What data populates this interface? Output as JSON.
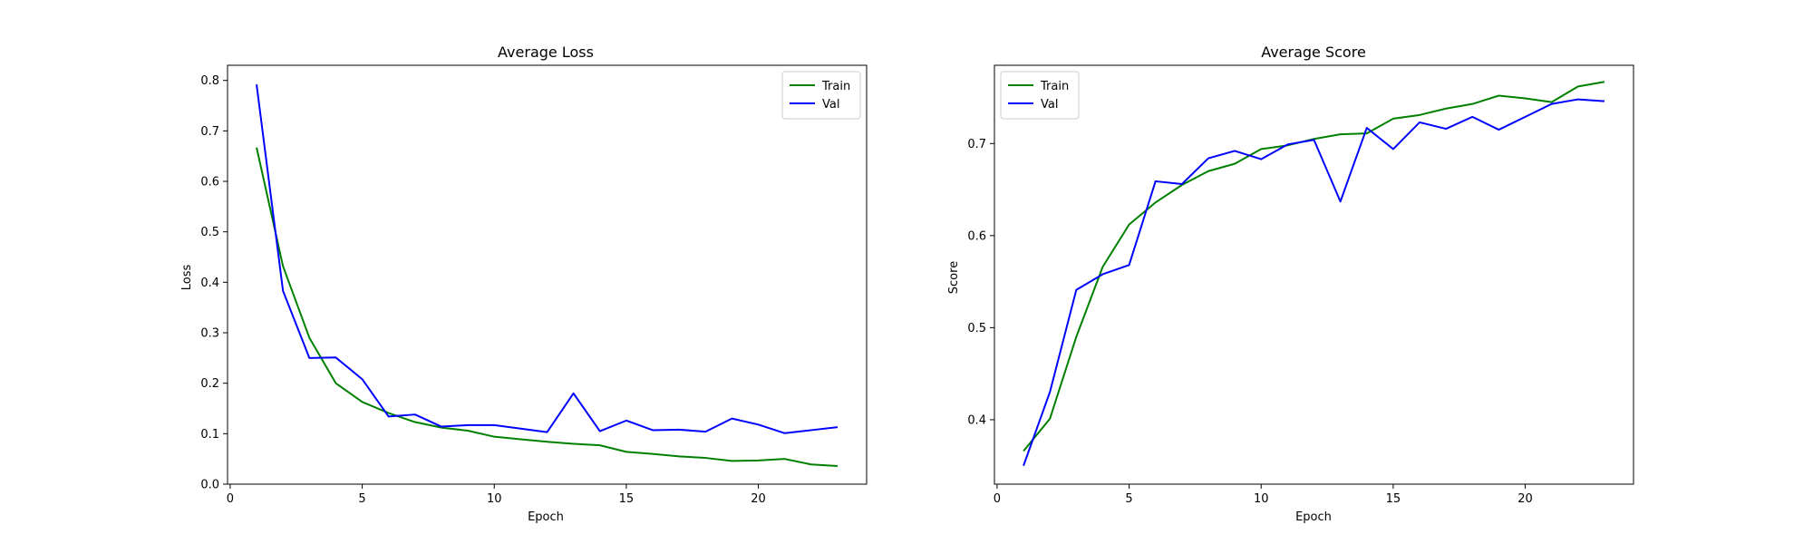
{
  "chart_data": [
    {
      "type": "line",
      "title": "Average Loss",
      "xlabel": "Epoch",
      "ylabel": "Loss",
      "xlim": [
        -0.1,
        24.1
      ],
      "ylim": [
        0.0,
        0.83
      ],
      "xticks": [
        0,
        5,
        10,
        15,
        20
      ],
      "yticks": [
        0.0,
        0.1,
        0.2,
        0.3,
        0.4,
        0.5,
        0.6,
        0.7,
        0.8
      ],
      "legend_position": "top-right",
      "grid": false,
      "x": [
        1,
        2,
        3,
        4,
        5,
        6,
        7,
        8,
        9,
        10,
        11,
        12,
        13,
        14,
        15,
        16,
        17,
        18,
        19,
        20,
        21,
        22,
        23
      ],
      "series": [
        {
          "name": "Train",
          "color": "#008000",
          "values": [
            0.667,
            0.432,
            0.29,
            0.2,
            0.163,
            0.141,
            0.123,
            0.112,
            0.106,
            0.094,
            0.089,
            0.084,
            0.08,
            0.077,
            0.064,
            0.06,
            0.055,
            0.052,
            0.046,
            0.047,
            0.05,
            0.039,
            0.036
          ]
        },
        {
          "name": "Val",
          "color": "#0000ff",
          "values": [
            0.792,
            0.383,
            0.25,
            0.251,
            0.208,
            0.134,
            0.138,
            0.114,
            0.117,
            0.117,
            0.11,
            0.103,
            0.18,
            0.105,
            0.126,
            0.107,
            0.108,
            0.104,
            0.13,
            0.118,
            0.101,
            0.107,
            0.113
          ]
        }
      ]
    },
    {
      "type": "line",
      "title": "Average Score",
      "xlabel": "Epoch",
      "ylabel": "Score",
      "xlim": [
        -0.1,
        24.1
      ],
      "ylim": [
        0.33,
        0.785
      ],
      "xticks": [
        0,
        5,
        10,
        15,
        20
      ],
      "yticks": [
        0.4,
        0.5,
        0.6,
        0.7
      ],
      "legend_position": "top-left",
      "grid": false,
      "x": [
        1,
        2,
        3,
        4,
        5,
        6,
        7,
        8,
        9,
        10,
        11,
        12,
        13,
        14,
        15,
        16,
        17,
        18,
        19,
        20,
        21,
        22,
        23
      ],
      "series": [
        {
          "name": "Train",
          "color": "#008000",
          "values": [
            0.366,
            0.401,
            0.49,
            0.566,
            0.612,
            0.636,
            0.655,
            0.67,
            0.678,
            0.694,
            0.698,
            0.705,
            0.71,
            0.711,
            0.727,
            0.731,
            0.738,
            0.743,
            0.752,
            0.749,
            0.745,
            0.762,
            0.767
          ]
        },
        {
          "name": "Val",
          "color": "#0000ff",
          "values": [
            0.35,
            0.43,
            0.541,
            0.558,
            0.568,
            0.659,
            0.656,
            0.684,
            0.692,
            0.683,
            0.699,
            0.704,
            0.637,
            0.717,
            0.694,
            0.723,
            0.716,
            0.729,
            0.715,
            0.729,
            0.743,
            0.748,
            0.746
          ]
        }
      ]
    }
  ]
}
